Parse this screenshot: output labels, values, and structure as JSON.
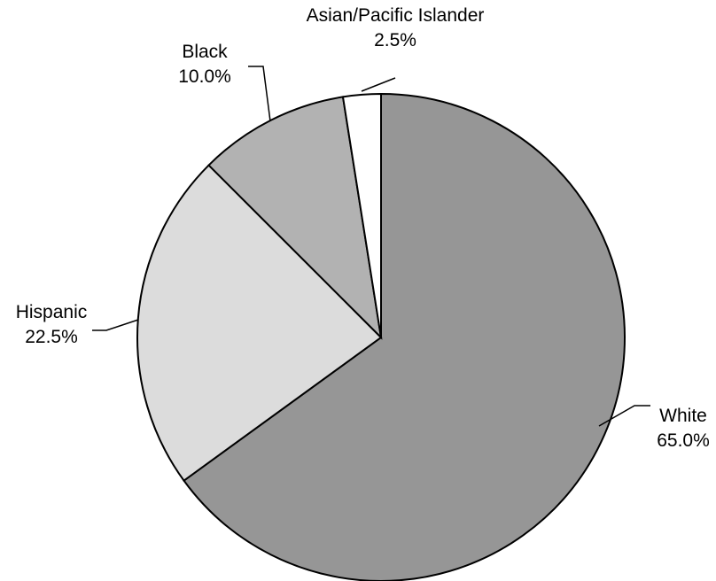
{
  "chart_data": {
    "type": "pie",
    "start_angle_deg": 0,
    "direction": "clockwise",
    "slices": [
      {
        "label": "White",
        "value": 65.0,
        "display": "65.0%",
        "color": "#969696"
      },
      {
        "label": "Hispanic",
        "value": 22.5,
        "display": "22.5%",
        "color": "#dcdcdc"
      },
      {
        "label": "Black",
        "value": 10.0,
        "display": "10.0%",
        "color": "#b2b2b2"
      },
      {
        "label": "Asian/Pacific Islander",
        "value": 2.5,
        "display": "2.5%",
        "color": "#ffffff"
      }
    ]
  }
}
